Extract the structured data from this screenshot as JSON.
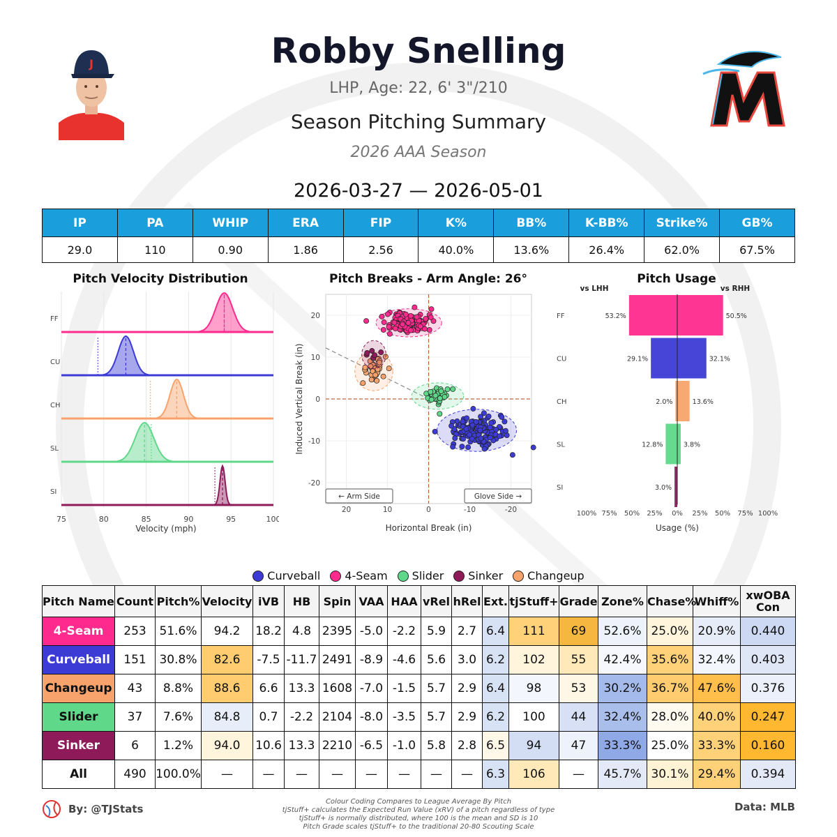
{
  "header": {
    "player_name": "Robby Snelling",
    "player_info": "LHP, Age: 22, 6' 3\"/210",
    "summary_title": "Season Pitching Summary",
    "season_label": "2026 AAA Season",
    "date_range": "2026-03-27 — 2026-05-01"
  },
  "season_stats": {
    "headers": [
      "IP",
      "PA",
      "WHIP",
      "ERA",
      "FIP",
      "K%",
      "BB%",
      "K-BB%",
      "Strike%",
      "GB%"
    ],
    "values": [
      "29.0",
      "110",
      "0.90",
      "1.86",
      "2.56",
      "40.0%",
      "13.6%",
      "26.4%",
      "62.0%",
      "67.5%"
    ]
  },
  "colors": {
    "FF": "#ff2a8d",
    "CU": "#3c3bd6",
    "CH": "#f7a36b",
    "SL": "#5fd88a",
    "SI": "#8e1a5a",
    "header_blue": "#1a9fdc"
  },
  "pitch_legend": [
    {
      "label": "Curveball",
      "color": "#3c3bd6"
    },
    {
      "label": "4-Seam",
      "color": "#ff2a8d"
    },
    {
      "label": "Slider",
      "color": "#5fd88a"
    },
    {
      "label": "Sinker",
      "color": "#8e1a5a"
    },
    {
      "label": "Changeup",
      "color": "#f7a36b"
    }
  ],
  "chart_data": [
    {
      "type": "area",
      "title": "Pitch Velocity Distribution",
      "xlabel": "Velocity (mph)",
      "ylabel": "",
      "xlim": [
        75,
        100
      ],
      "xticks": [
        75,
        80,
        85,
        90,
        95,
        100
      ],
      "categories": [
        "FF",
        "CU",
        "CH",
        "SL",
        "SI"
      ],
      "series": [
        {
          "name": "FF",
          "mean": 94.2,
          "sd": 1.0,
          "league_mean": 94.2
        },
        {
          "name": "CU",
          "mean": 82.6,
          "sd": 0.9,
          "league_mean": 79.3
        },
        {
          "name": "CH",
          "mean": 88.6,
          "sd": 0.8,
          "league_mean": 85.5
        },
        {
          "name": "SL",
          "mean": 84.8,
          "sd": 1.1,
          "league_mean": 85.6
        },
        {
          "name": "SI",
          "mean": 94.0,
          "sd": 0.3,
          "league_mean": 93.1
        }
      ]
    },
    {
      "type": "scatter",
      "title": "Pitch Breaks - Arm Angle: 26°",
      "xlabel": "Horizontal Break (in)",
      "ylabel": "Induced Vertical Break (in)",
      "xlim": [
        25,
        -25
      ],
      "ylim": [
        -25,
        25
      ],
      "xticks": [
        20,
        10,
        0,
        -10,
        -20
      ],
      "yticks": [
        20,
        10,
        0,
        -10,
        -20
      ],
      "annotations": [
        "← Arm Side",
        "Glove Side →"
      ],
      "series": [
        {
          "name": "4-Seam",
          "code": "FF",
          "hb": 4.8,
          "ivb": 18.2,
          "count": 253
        },
        {
          "name": "Curveball",
          "code": "CU",
          "hb": -11.7,
          "ivb": -7.5,
          "count": 151
        },
        {
          "name": "Changeup",
          "code": "CH",
          "hb": 13.3,
          "ivb": 6.6,
          "count": 43
        },
        {
          "name": "Slider",
          "code": "SL",
          "hb": -2.2,
          "ivb": 0.7,
          "count": 37
        },
        {
          "name": "Sinker",
          "code": "SI",
          "hb": 13.3,
          "ivb": 10.6,
          "count": 6
        }
      ]
    },
    {
      "type": "bar",
      "title": "Pitch Usage",
      "xlabel": "Usage (%)",
      "left_label": "vs LHH",
      "right_label": "vs RHH",
      "xticks": [
        "100%",
        "75%",
        "50%",
        "25%",
        "0%",
        "25%",
        "50%",
        "75%",
        "100%"
      ],
      "categories": [
        "FF",
        "CU",
        "CH",
        "SL",
        "SI"
      ],
      "series": [
        {
          "name": "vs LHH",
          "values": [
            53.2,
            29.1,
            2.0,
            12.8,
            3.0
          ],
          "labels": [
            "53.2%",
            "29.1%",
            "2.0%",
            "12.8%",
            "3.0%"
          ]
        },
        {
          "name": "vs RHH",
          "values": [
            50.5,
            32.1,
            13.6,
            3.8,
            0
          ],
          "labels": [
            "50.5%",
            "32.1%",
            "13.6%",
            "3.8%",
            ""
          ]
        }
      ]
    },
    {
      "type": "table",
      "columns": [
        "Pitch Name",
        "Count",
        "Pitch%",
        "Velocity",
        "iVB",
        "HB",
        "Spin",
        "VAA",
        "HAA",
        "vRel",
        "hRel",
        "Ext.",
        "tjStuff+",
        "Grade",
        "Zone%",
        "Chase%",
        "Whiff%",
        "xwOBA Con"
      ],
      "rows": [
        {
          "name": "4-Seam",
          "name_color": "#ff2a8d",
          "text_color": "#ffffff",
          "cells": [
            "253",
            "51.6%",
            "94.2",
            "18.2",
            "4.8",
            "2395",
            "-5.0",
            "-2.2",
            "5.9",
            "2.7",
            "6.4",
            "111",
            "69",
            "52.6%",
            "25.0%",
            "20.9%",
            "0.440"
          ],
          "bg": [
            "#fff",
            "#fff",
            "#fff",
            "#fff",
            "#fff",
            "#fff",
            "#fff",
            "#fff",
            "#fff",
            "#fff",
            "#d8e2f5",
            "#ffd27a",
            "#f5b740",
            "#eef2fb",
            "#fff5dc",
            "#e6ecf8",
            "#cdd9f3"
          ]
        },
        {
          "name": "Curveball",
          "name_color": "#3c3bd6",
          "text_color": "#ffffff",
          "cells": [
            "151",
            "30.8%",
            "82.6",
            "-7.5",
            "-11.7",
            "2491",
            "-8.9",
            "-4.6",
            "5.6",
            "3.0",
            "6.2",
            "102",
            "55",
            "42.4%",
            "35.6%",
            "32.4%",
            "0.403"
          ],
          "bg": [
            "#fff",
            "#fff",
            "#ffcc70",
            "#fff",
            "#fff",
            "#fff",
            "#fff",
            "#fff",
            "#fff",
            "#fff",
            "#d8e2f5",
            "#fff4dc",
            "#ffe9b8",
            "#f6f8fd",
            "#ffd27a",
            "#f3f6fc",
            "#dfe6f6"
          ]
        },
        {
          "name": "Changeup",
          "name_color": "#f7a36b",
          "text_color": "#111111",
          "cells": [
            "43",
            "8.8%",
            "88.6",
            "6.6",
            "13.3",
            "1608",
            "-7.0",
            "-1.5",
            "5.7",
            "2.9",
            "6.4",
            "98",
            "53",
            "30.2%",
            "36.7%",
            "47.6%",
            "0.376"
          ],
          "bg": [
            "#fff",
            "#fff",
            "#ffcc70",
            "#fff",
            "#fff",
            "#fff",
            "#fff",
            "#fff",
            "#fff",
            "#fff",
            "#d8e2f5",
            "#f3f6fc",
            "#fff7e6",
            "#a4baeb",
            "#ffcc70",
            "#ffbf4a",
            "#ecf0fa"
          ]
        },
        {
          "name": "Slider",
          "name_color": "#5fd88a",
          "text_color": "#111111",
          "cells": [
            "37",
            "7.6%",
            "84.8",
            "0.7",
            "-2.2",
            "2104",
            "-8.0",
            "-3.5",
            "5.7",
            "2.9",
            "6.2",
            "100",
            "44",
            "32.4%",
            "28.0%",
            "40.0%",
            "0.247"
          ],
          "bg": [
            "#fff",
            "#fff",
            "#e7edf9",
            "#fff",
            "#fff",
            "#fff",
            "#fff",
            "#fff",
            "#fff",
            "#fff",
            "#d8e2f5",
            "#fff",
            "#d7e0f5",
            "#a9beeb",
            "#fffaf0",
            "#ffd27a",
            "#ffb830"
          ]
        },
        {
          "name": "Sinker",
          "name_color": "#8e1a5a",
          "text_color": "#ffffff",
          "cells": [
            "6",
            "1.2%",
            "94.0",
            "10.6",
            "13.3",
            "2210",
            "-6.5",
            "-1.0",
            "5.8",
            "2.8",
            "6.5",
            "94",
            "47",
            "33.3%",
            "25.0%",
            "33.3%",
            "0.160"
          ],
          "bg": [
            "#fff",
            "#fff",
            "#fff4dc",
            "#fff",
            "#fff",
            "#fff",
            "#fff",
            "#fff",
            "#fff",
            "#fff",
            "#fff7e8",
            "#d3ddf4",
            "#eef2fb",
            "#8fa9e6",
            "#fff",
            "#ffd27a",
            "#ffb830"
          ]
        },
        {
          "name": "All",
          "name_color": "#ffffff",
          "text_color": "#111111",
          "cells": [
            "490",
            "100.0%",
            "—",
            "—",
            "—",
            "—",
            "—",
            "—",
            "—",
            "—",
            "6.3",
            "106",
            "—",
            "45.7%",
            "30.1%",
            "29.4%",
            "0.394"
          ],
          "bg": [
            "#fff",
            "#fff",
            "#fff",
            "#fff",
            "#fff",
            "#fff",
            "#fff",
            "#fff",
            "#fff",
            "#fff",
            "#d8e2f5",
            "#ffe9b8",
            "#fff",
            "#e3e9f7",
            "#fff3d6",
            "#ffd27a",
            "#e3e9f7"
          ]
        }
      ]
    }
  ],
  "footer": {
    "author": "By: @TJStats",
    "source": "Data: MLB",
    "notes": [
      "Colour Coding Compares to League Average By Pitch",
      "tjStuff+ calculates the Expected Run Value (xRV) of a pitch regardless of type",
      "tjStuff+ is normally distributed, where 100 is the mean and SD is 10",
      "Pitch Grade scales tjStuff+ to the traditional 20-80 Scouting Scale"
    ]
  }
}
